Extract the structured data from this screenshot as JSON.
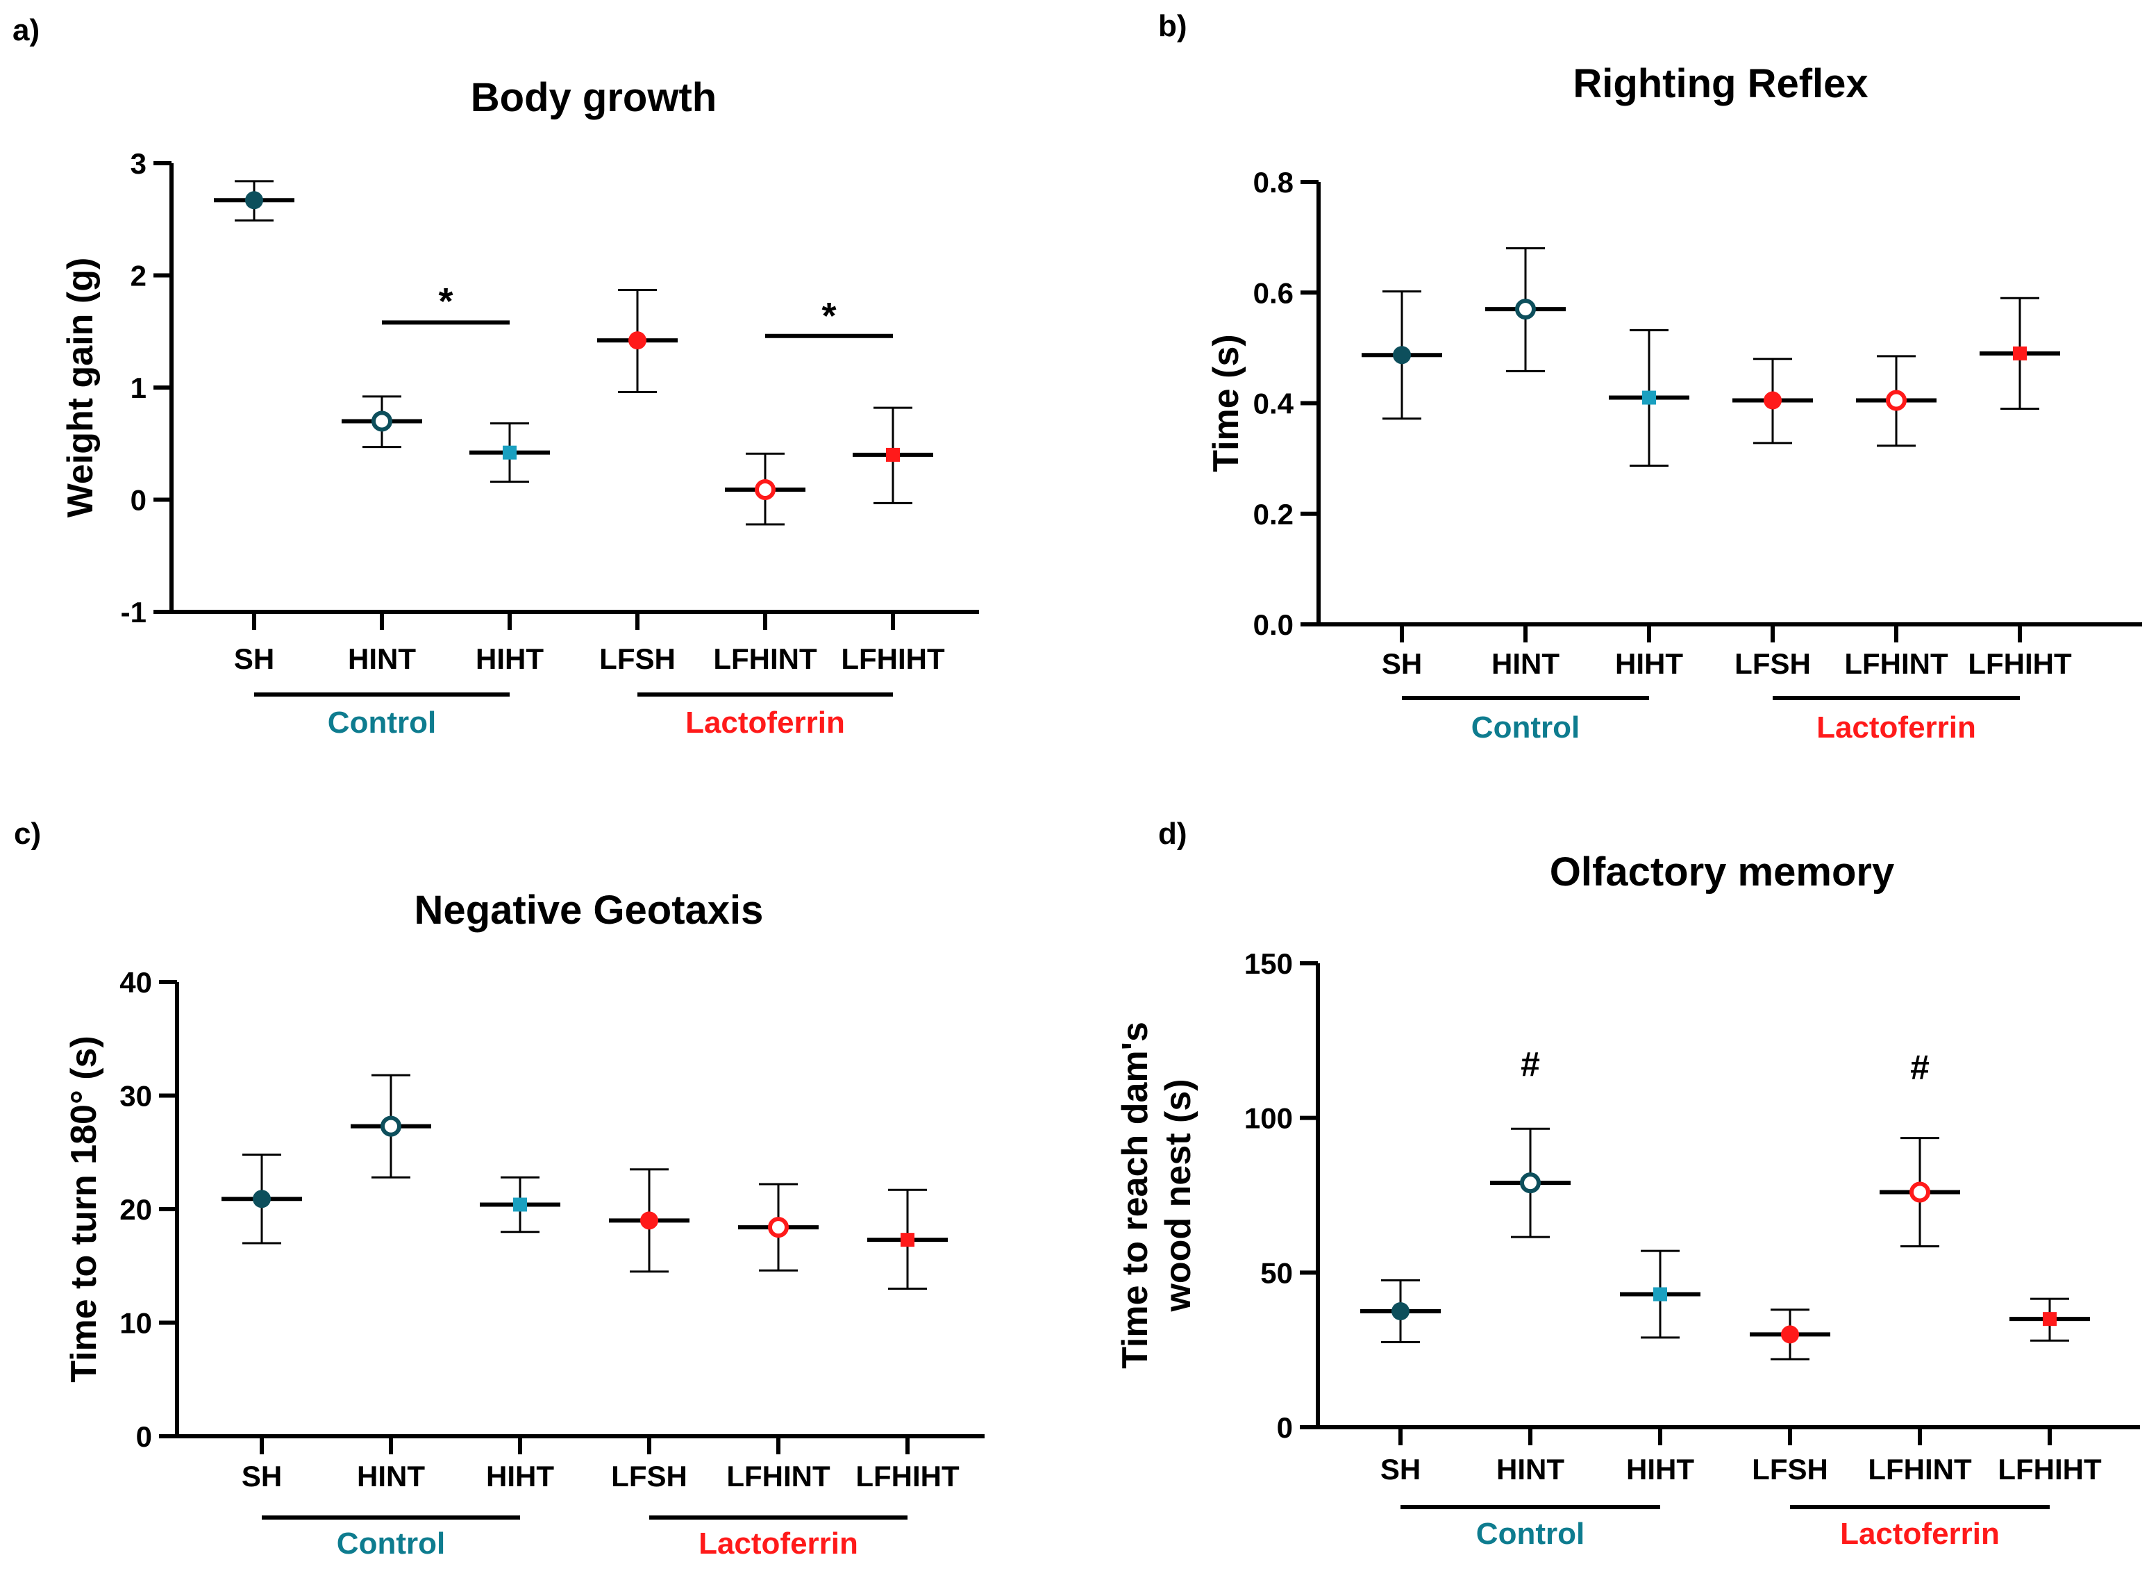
{
  "colors": {
    "axis": "#000000",
    "control_text": "#0e7c8f",
    "lactoferrin_text": "#ff1a1a",
    "SH": "#0d4f5c",
    "HINT": "#0d4f5c",
    "HIHT": "#1aa0c0",
    "LFSH": "#ff1a1a",
    "LFHINT": "#ff1a1a",
    "LFHIHT": "#ff1a1a"
  },
  "markers": {
    "SH": "filled-circle",
    "HINT": "open-circle",
    "HIHT": "filled-square",
    "LFSH": "filled-circle",
    "LFHINT": "open-circle",
    "LFHIHT": "filled-square"
  },
  "chart_data": [
    {
      "panel": "a)",
      "type": "scatter",
      "title": "Body growth",
      "ylabel": [
        "Weight gain (g)"
      ],
      "ylim": [
        -1,
        3
      ],
      "yticks": [
        -1,
        0,
        1,
        2,
        3
      ],
      "categories": [
        "SH",
        "HINT",
        "HIHT",
        "LFSH",
        "LFHINT",
        "LFHIHT"
      ],
      "means": [
        2.67,
        0.7,
        0.42,
        1.42,
        0.09,
        0.4
      ],
      "err_low": [
        2.49,
        0.47,
        0.16,
        0.96,
        -0.22,
        -0.03
      ],
      "err_high": [
        2.84,
        0.92,
        0.68,
        1.87,
        0.41,
        0.82
      ],
      "groups": [
        {
          "label": "Control",
          "from": 0,
          "to": 2,
          "color": "control"
        },
        {
          "label": "Lactoferrin",
          "from": 3,
          "to": 5,
          "color": "lactoferrin"
        }
      ],
      "annotations": [
        {
          "text": "*",
          "from": 1,
          "to": 2,
          "bar_y": 1.58,
          "text_y": 1.78
        },
        {
          "text": "*",
          "from": 4,
          "to": 5,
          "bar_y": 1.46,
          "text_y": 1.65
        }
      ]
    },
    {
      "panel": "b)",
      "type": "scatter",
      "title": "Righting Reflex",
      "ylabel": [
        "Time (s)"
      ],
      "ylim": [
        0,
        0.8
      ],
      "yticks": [
        0.0,
        0.2,
        0.4,
        0.6,
        0.8
      ],
      "ytick_labels": [
        "0.0",
        "0.2",
        "0.4",
        "0.6",
        "0.8"
      ],
      "categories": [
        "SH",
        "HINT",
        "HIHT",
        "LFSH",
        "LFHINT",
        "LFHIHT"
      ],
      "means": [
        0.487,
        0.57,
        0.41,
        0.405,
        0.405,
        0.49
      ],
      "err_low": [
        0.372,
        0.458,
        0.287,
        0.328,
        0.323,
        0.39
      ],
      "err_high": [
        0.602,
        0.68,
        0.532,
        0.48,
        0.485,
        0.59
      ],
      "groups": [
        {
          "label": "Control",
          "from": 0,
          "to": 2,
          "color": "control"
        },
        {
          "label": "Lactoferrin",
          "from": 3,
          "to": 5,
          "color": "lactoferrin"
        }
      ],
      "annotations": []
    },
    {
      "panel": "c)",
      "type": "scatter",
      "title": "Negative Geotaxis",
      "ylabel": [
        "Time to turn 180° (s)"
      ],
      "ylim": [
        0,
        40
      ],
      "yticks": [
        0,
        10,
        20,
        30,
        40
      ],
      "categories": [
        "SH",
        "HINT",
        "HIHT",
        "LFSH",
        "LFHINT",
        "LFHIHT"
      ],
      "means": [
        20.9,
        27.3,
        20.4,
        19.0,
        18.4,
        17.3
      ],
      "err_low": [
        17.0,
        22.8,
        18.0,
        14.5,
        14.6,
        13.0
      ],
      "err_high": [
        24.8,
        31.8,
        22.8,
        23.5,
        22.2,
        21.7
      ],
      "groups": [
        {
          "label": "Control",
          "from": 0,
          "to": 2,
          "color": "control"
        },
        {
          "label": "Lactoferrin",
          "from": 3,
          "to": 5,
          "color": "lactoferrin"
        }
      ],
      "annotations": []
    },
    {
      "panel": "d)",
      "type": "scatter",
      "title": "Olfactory memory",
      "ylabel": [
        "Time to reach dam's",
        "wood nest (s)"
      ],
      "ylim": [
        0,
        150
      ],
      "yticks": [
        0,
        50,
        100,
        150
      ],
      "categories": [
        "SH",
        "HINT",
        "HIHT",
        "LFSH",
        "LFHINT",
        "LFHIHT"
      ],
      "means": [
        37.5,
        79.0,
        43.0,
        30.0,
        76.0,
        35.0
      ],
      "err_low": [
        27.5,
        61.5,
        29.0,
        22.0,
        58.5,
        28.0
      ],
      "err_high": [
        47.5,
        96.5,
        57.0,
        38.0,
        93.5,
        41.5
      ],
      "groups": [
        {
          "label": "Control",
          "from": 0,
          "to": 2,
          "color": "control"
        },
        {
          "label": "Lactoferrin",
          "from": 3,
          "to": 5,
          "color": "lactoferrin"
        }
      ],
      "annotations": [
        {
          "text": "#",
          "at": 1,
          "text_y": 118
        },
        {
          "text": "#",
          "at": 4,
          "text_y": 117
        }
      ]
    }
  ]
}
